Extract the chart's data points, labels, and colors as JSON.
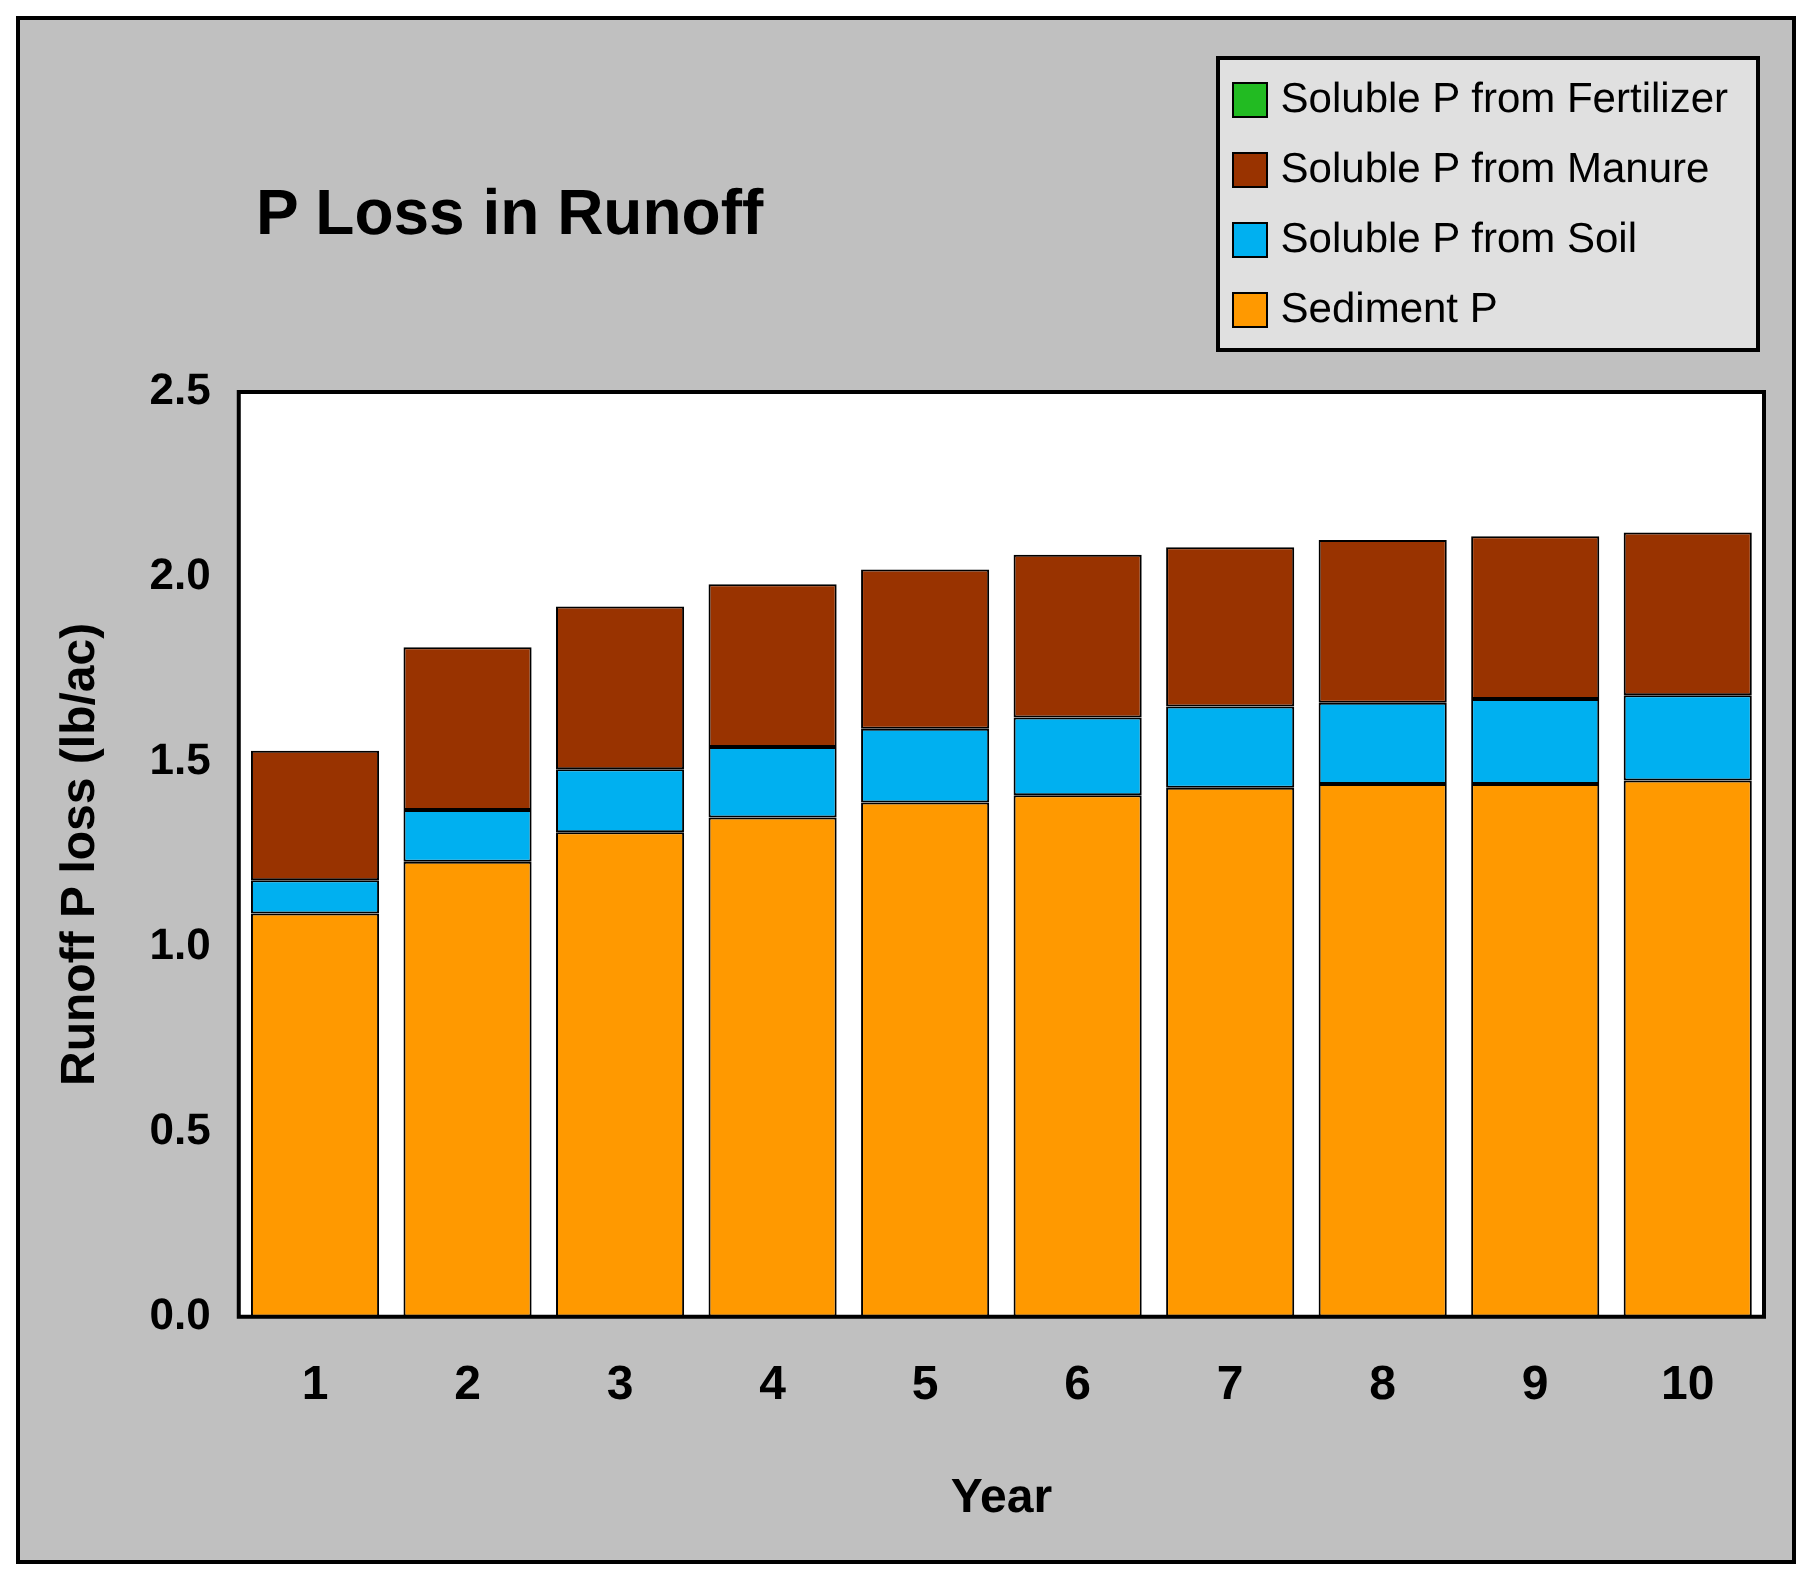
{
  "chart_data": {
    "type": "bar",
    "title": "P Loss in Runoff",
    "xlabel": "Year",
    "ylabel": "Runoff P loss (lb/ac)",
    "categories": [
      "1",
      "2",
      "3",
      "4",
      "5",
      "6",
      "7",
      "8",
      "9",
      "10"
    ],
    "stacked": true,
    "legend": "top right",
    "ylim": [
      0,
      2.5
    ],
    "yticks": [
      {
        "value": 0,
        "label": "0.0"
      },
      {
        "value": 0.5,
        "label": "0.5"
      },
      {
        "value": 1,
        "label": "1.0"
      },
      {
        "value": 1.5,
        "label": "1.5"
      },
      {
        "value": 2,
        "label": "2.0"
      },
      {
        "value": 2.5,
        "label": "2.5"
      }
    ],
    "series": [
      {
        "name": "Sediment P",
        "color": "#ff9900",
        "values": [
          1.09,
          1.23,
          1.31,
          1.35,
          1.39,
          1.41,
          1.43,
          1.44,
          1.44,
          1.45
        ]
      },
      {
        "name": "Soluble P from Soil",
        "color": "#00b0f0",
        "values": [
          0.09,
          0.14,
          0.17,
          0.19,
          0.2,
          0.21,
          0.22,
          0.22,
          0.23,
          0.23
        ]
      },
      {
        "name": "Soluble P from Manure",
        "color": "#993300",
        "values": [
          0.35,
          0.44,
          0.44,
          0.44,
          0.43,
          0.44,
          0.43,
          0.44,
          0.44,
          0.44
        ]
      },
      {
        "name": "Soluble P from Fertilizer",
        "color": "#22bb22",
        "values": [
          0,
          0,
          0,
          0,
          0,
          0,
          0,
          0,
          0,
          0
        ]
      }
    ]
  }
}
